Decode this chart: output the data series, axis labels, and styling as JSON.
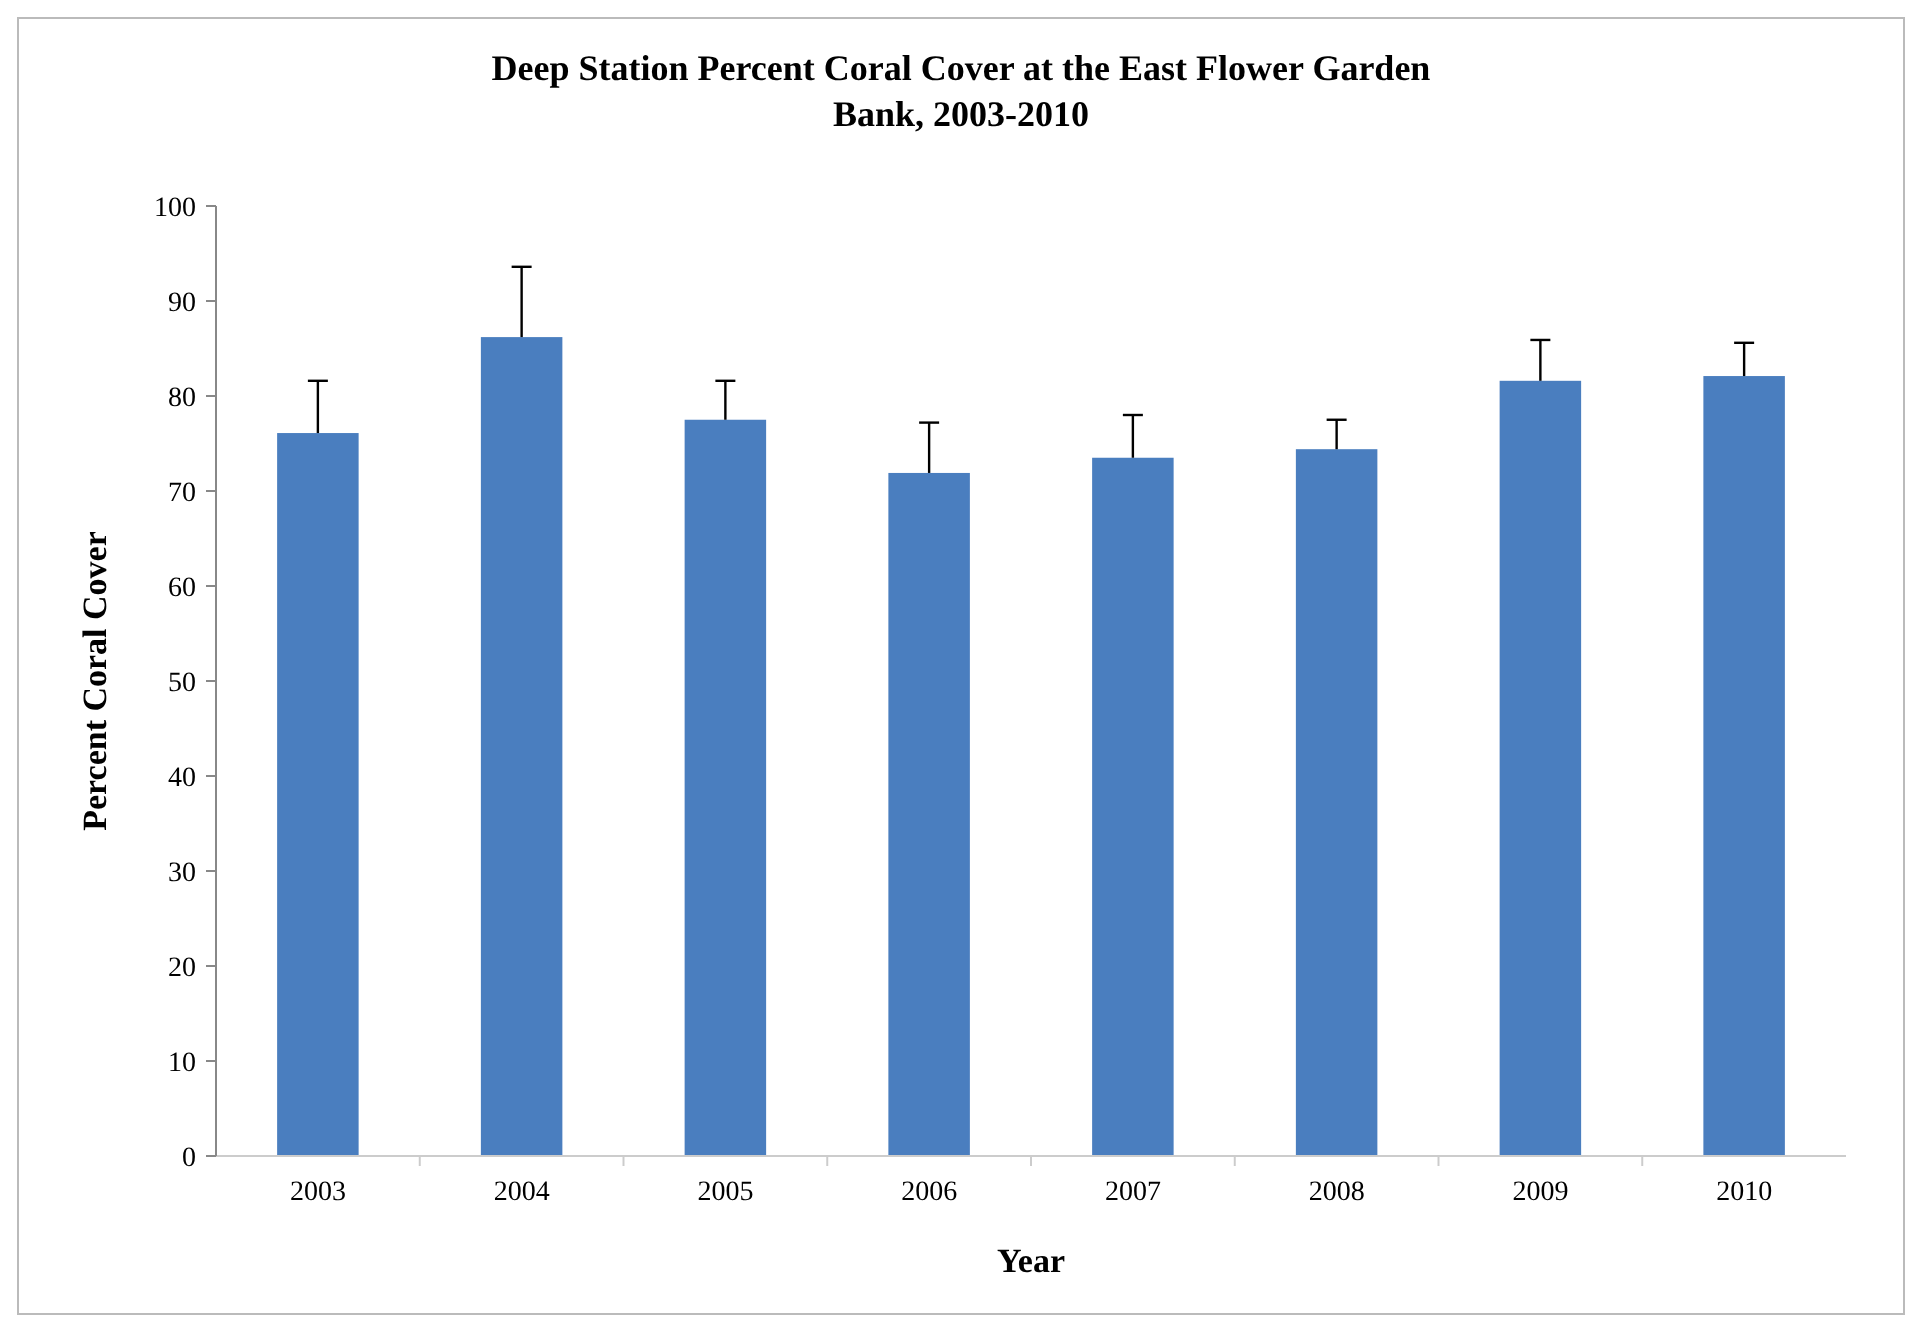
{
  "chart_data": {
    "type": "bar",
    "title": "Deep Station Percent Coral Cover at the East Flower Garden Bank, 2003-2010",
    "xlabel": "Year",
    "ylabel": "Percent Coral Cover",
    "categories": [
      "2003",
      "2004",
      "2005",
      "2006",
      "2007",
      "2008",
      "2009",
      "2010"
    ],
    "values": [
      76.1,
      86.2,
      77.5,
      71.9,
      73.5,
      74.4,
      81.6,
      82.1
    ],
    "errors": [
      [
        76.1,
        81.6
      ],
      [
        86.2,
        93.6
      ],
      [
        77.5,
        81.6
      ],
      [
        71.9,
        77.2
      ],
      [
        73.5,
        78.0
      ],
      [
        74.4,
        77.5
      ],
      [
        81.6,
        85.9
      ],
      [
        82.1,
        85.6
      ]
    ],
    "color": "#4a7ebf",
    "ylim": [
      0,
      100
    ],
    "yticks": [
      0,
      10,
      20,
      30,
      40,
      50,
      60,
      70,
      80,
      90,
      100
    ],
    "grid": false
  }
}
